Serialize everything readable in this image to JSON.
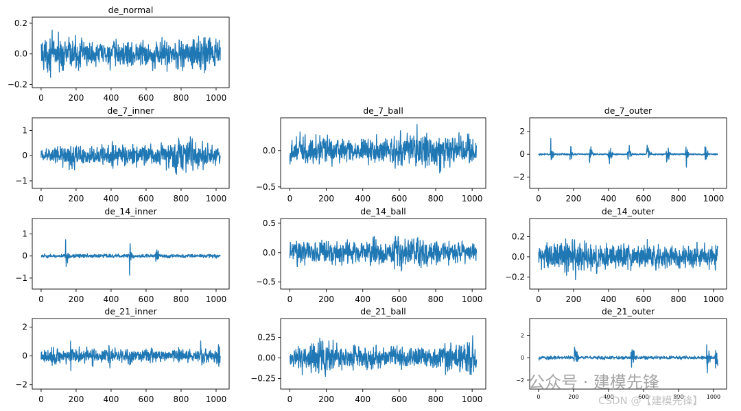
{
  "chart_data": [
    {
      "type": "line",
      "title": "de_normal",
      "xlim": [
        0,
        1024
      ],
      "ylim": [
        -0.22,
        0.24
      ],
      "xticks": [
        0,
        200,
        400,
        600,
        800,
        1000
      ],
      "yticks": [
        -0.2,
        0.0,
        0.2
      ],
      "ytick_labels": [
        "−0.2",
        "0.0",
        "0.2"
      ],
      "color": "#1f77b4",
      "signal": {
        "amplitude": 0.2,
        "envelope": [
          [
            0,
            0.9
          ],
          [
            0.15,
            0.95
          ],
          [
            0.3,
            0.7
          ],
          [
            0.45,
            0.8
          ],
          [
            0.6,
            0.7
          ],
          [
            0.75,
            0.85
          ],
          [
            0.9,
            0.95
          ],
          [
            1,
            0.8
          ]
        ]
      }
    },
    {
      "type": "line",
      "title": "de_7_inner",
      "xlim": [
        0,
        1024
      ],
      "ylim": [
        -1.3,
        1.5
      ],
      "xticks": [
        0,
        200,
        400,
        600,
        800,
        1000
      ],
      "yticks": [
        -1,
        0,
        1
      ],
      "ytick_labels": [
        "−1",
        "0",
        "1"
      ],
      "color": "#1f77b4",
      "signal": {
        "amplitude": 1.2,
        "envelope": [
          [
            0,
            0.35
          ],
          [
            0.15,
            0.75
          ],
          [
            0.3,
            0.45
          ],
          [
            0.5,
            0.7
          ],
          [
            0.62,
            0.45
          ],
          [
            0.75,
            1.0
          ],
          [
            0.86,
            0.9
          ],
          [
            1,
            0.5
          ]
        ]
      }
    },
    {
      "type": "line",
      "title": "de_7_ball",
      "xlim": [
        0,
        1024
      ],
      "ylim": [
        -0.52,
        0.45
      ],
      "xticks": [
        0,
        200,
        400,
        600,
        800,
        1000
      ],
      "yticks": [
        -0.5,
        0.0
      ],
      "ytick_labels": [
        "−0.5",
        "0.0"
      ],
      "color": "#1f77b4",
      "signal": {
        "amplitude": 0.4,
        "envelope": [
          [
            0,
            0.8
          ],
          [
            0.2,
            0.8
          ],
          [
            0.5,
            0.75
          ],
          [
            0.72,
            1.0
          ],
          [
            0.85,
            0.8
          ],
          [
            1,
            0.7
          ]
        ]
      }
    },
    {
      "type": "line",
      "title": "de_7_outer",
      "xlim": [
        0,
        1024
      ],
      "ylim": [
        -3.0,
        3.2
      ],
      "xticks": [
        0,
        200,
        400,
        600,
        800,
        1000
      ],
      "yticks": [
        -2,
        0,
        2
      ],
      "ytick_labels": [
        "−2",
        "0",
        "2"
      ],
      "color": "#1f77b4",
      "signal": {
        "amplitude": 2.6,
        "baseline": 0.05,
        "bursts": [
          70,
          180,
          290,
          400,
          510,
          620,
          730,
          840,
          950
        ],
        "burst_width": 10
      }
    },
    {
      "type": "line",
      "title": "de_14_inner",
      "xlim": [
        0,
        1024
      ],
      "ylim": [
        -1.5,
        1.7
      ],
      "xticks": [
        0,
        200,
        400,
        600,
        800,
        1000
      ],
      "yticks": [
        -1,
        0,
        1
      ],
      "ytick_labels": [
        "−1",
        "0",
        "1"
      ],
      "color": "#1f77b4",
      "signal": {
        "amplitude": 1.4,
        "baseline": 0.1,
        "bursts": [
          140,
          505,
          655
        ],
        "burst_width": 12
      }
    },
    {
      "type": "line",
      "title": "de_14_ball",
      "xlim": [
        0,
        1024
      ],
      "ylim": [
        -0.62,
        0.58
      ],
      "xticks": [
        0,
        200,
        400,
        600,
        800,
        1000
      ],
      "yticks": [
        -0.5,
        0.0,
        0.5
      ],
      "ytick_labels": [
        "−0.5",
        "0.0",
        "0.5"
      ],
      "color": "#1f77b4",
      "signal": {
        "amplitude": 0.5,
        "envelope": [
          [
            0,
            0.7
          ],
          [
            0.2,
            0.65
          ],
          [
            0.4,
            0.6
          ],
          [
            0.66,
            1.0
          ],
          [
            0.8,
            0.7
          ],
          [
            1,
            0.5
          ]
        ]
      }
    },
    {
      "type": "line",
      "title": "de_14_outer",
      "xlim": [
        0,
        1024
      ],
      "ylim": [
        -0.32,
        0.38
      ],
      "xticks": [
        0,
        200,
        400,
        600,
        800,
        1000
      ],
      "yticks": [
        -0.2,
        0.0,
        0.2
      ],
      "ytick_labels": [
        "−0.2",
        "0.0",
        "0.2"
      ],
      "color": "#1f77b4",
      "signal": {
        "amplitude": 0.32,
        "envelope": [
          [
            0,
            0.6
          ],
          [
            0.2,
            0.95
          ],
          [
            0.35,
            0.6
          ],
          [
            0.5,
            0.7
          ],
          [
            0.7,
            0.65
          ],
          [
            1,
            0.6
          ]
        ]
      }
    },
    {
      "type": "line",
      "title": "de_21_inner",
      "xlim": [
        0,
        1024
      ],
      "ylim": [
        -2.3,
        2.6
      ],
      "xticks": [
        0,
        200,
        400,
        600,
        800,
        1000
      ],
      "yticks": [
        -2,
        0,
        2
      ],
      "ytick_labels": [
        "−2",
        "0",
        "2"
      ],
      "color": "#1f77b4",
      "signal": {
        "amplitude": 2.2,
        "baseline": 0.35,
        "bursts": [
          60,
          165,
          290,
          385,
          505,
          620,
          785,
          910,
          1010
        ],
        "burst_width": 18
      }
    },
    {
      "type": "line",
      "title": "de_21_ball",
      "xlim": [
        0,
        1024
      ],
      "ylim": [
        -0.38,
        0.48
      ],
      "xticks": [
        0,
        200,
        400,
        600,
        800,
        1000
      ],
      "yticks": [
        -0.25,
        0.0,
        0.25
      ],
      "ytick_labels": [
        "−0.25",
        "0.00",
        "0.25"
      ],
      "color": "#1f77b4",
      "signal": {
        "amplitude": 0.4,
        "envelope": [
          [
            0,
            0.5
          ],
          [
            0.18,
            1.0
          ],
          [
            0.3,
            0.6
          ],
          [
            0.5,
            0.55
          ],
          [
            0.75,
            0.6
          ],
          [
            0.97,
            1.0
          ],
          [
            1,
            0.8
          ]
        ]
      }
    },
    {
      "type": "line",
      "title": "de_21_outer",
      "xlim": [
        0,
        1024
      ],
      "ylim": [
        -2.8,
        3.5
      ],
      "xticks": [
        0,
        200,
        400,
        600,
        800,
        1000
      ],
      "yticks": [
        -2,
        0,
        2
      ],
      "ytick_labels": [
        "−2",
        "0",
        "2"
      ],
      "color": "#1f77b4",
      "signal": {
        "amplitude": 3.0,
        "baseline": 0.08,
        "bursts": [
          205,
          530,
          960,
          1010
        ],
        "burst_width": 14
      }
    }
  ],
  "watermark": {
    "line1": "公众号 · 建模先锋",
    "line2": "CSDN @【建模先锋】"
  }
}
